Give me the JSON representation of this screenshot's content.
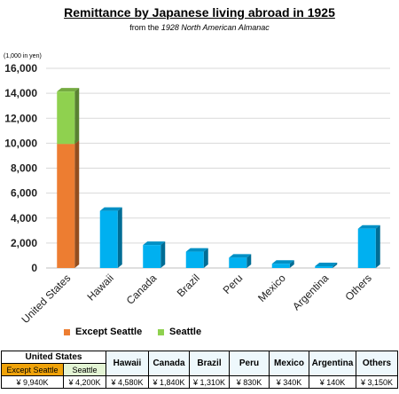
{
  "header": {
    "title": "Remittance by Japanese living abroad in 1925",
    "subtitle_prefix": "from the",
    "subtitle_source": "1928 North American Almanac"
  },
  "colors": {
    "except_seattle": "#ED7D31",
    "seattle": "#8FD14F",
    "bars": "#00B0F0",
    "grid": "#d9d9d9"
  },
  "chart_data": {
    "type": "bar",
    "stacked": true,
    "ylabel": "(1,000 in yen)",
    "ylim": [
      0,
      16000
    ],
    "yticks": [
      "0",
      "2,000",
      "4,000",
      "6,000",
      "8,000",
      "10,000",
      "12,000",
      "14,000",
      "16,000"
    ],
    "ytick_values": [
      0,
      2000,
      4000,
      6000,
      8000,
      10000,
      12000,
      14000,
      16000
    ],
    "categories": [
      "United States",
      "Hawaii",
      "Canada",
      "Brazil",
      "Peru",
      "Mexico",
      "Argentina",
      "Others"
    ],
    "series": [
      {
        "name": "Except Seattle",
        "values": [
          9940,
          0,
          0,
          0,
          0,
          0,
          0,
          0
        ]
      },
      {
        "name": "Seattle",
        "values": [
          4200,
          0,
          0,
          0,
          0,
          0,
          0,
          0
        ]
      },
      {
        "values": [
          0,
          4580,
          1840,
          1310,
          830,
          340,
          140,
          3150
        ]
      }
    ],
    "legend_position": "bottom",
    "grid": true
  },
  "table": {
    "us_header": "United States",
    "region_headers": [
      "Hawaii",
      "Canada",
      "Brazil",
      "Peru",
      "Mexico",
      "Argentina",
      "Others"
    ],
    "sub_headers": [
      "Except Seattle",
      "Seattle"
    ],
    "values": [
      "¥ 9,940K",
      "¥ 4,200K",
      "¥ 4,580K",
      "¥ 1,840K",
      "¥ 1,310K",
      "¥ 830K",
      "¥ 340K",
      "¥ 140K",
      "¥ 3,150K"
    ]
  }
}
